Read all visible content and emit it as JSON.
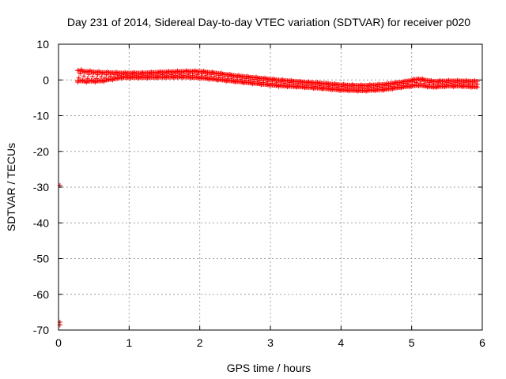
{
  "chart_data": {
    "type": "scatter",
    "title": "Day 231 of 2014, Sidereal Day-to-day VTEC variation (SDTVAR) for receiver p020",
    "xlabel": "GPS time / hours",
    "ylabel": "SDTVAR / TECUs",
    "xlim": [
      0,
      6
    ],
    "ylim": [
      -70,
      10
    ],
    "xticks": [
      "0",
      "1",
      "2",
      "3",
      "4",
      "5",
      "6"
    ],
    "yticks": [
      "-70",
      "-60",
      "-50",
      "-40",
      "-30",
      "-20",
      "-10",
      "0",
      "10"
    ],
    "grid": true,
    "legend": "none",
    "colors": {
      "series": "#ff0000",
      "outlier": "#cc0000",
      "grid": "#a0a0a0"
    },
    "series": [
      {
        "values_center": [
          [
            0.27,
            1.2
          ],
          [
            0.4,
            1.0
          ],
          [
            0.6,
            0.9
          ],
          [
            0.9,
            1.3
          ],
          [
            1.2,
            1.3
          ],
          [
            1.5,
            1.5
          ],
          [
            1.8,
            1.6
          ],
          [
            2.0,
            1.5
          ],
          [
            2.2,
            1.1
          ],
          [
            2.5,
            0.4
          ],
          [
            2.8,
            -0.2
          ],
          [
            3.1,
            -0.8
          ],
          [
            3.4,
            -1.2
          ],
          [
            3.7,
            -1.6
          ],
          [
            4.0,
            -2.1
          ],
          [
            4.3,
            -2.3
          ],
          [
            4.6,
            -2.0
          ],
          [
            4.9,
            -1.2
          ],
          [
            5.1,
            -0.6
          ],
          [
            5.3,
            -1.2
          ],
          [
            5.5,
            -1.0
          ],
          [
            5.7,
            -1.0
          ],
          [
            5.93,
            -1.2
          ]
        ],
        "values_spread": [
          [
            0.27,
            1.8
          ],
          [
            0.4,
            1.7
          ],
          [
            0.6,
            1.5
          ],
          [
            0.9,
            0.8
          ],
          [
            1.2,
            0.8
          ],
          [
            1.5,
            0.9
          ],
          [
            1.8,
            1.0
          ],
          [
            2.0,
            1.1
          ],
          [
            2.2,
            1.1
          ],
          [
            2.5,
            1.0
          ],
          [
            2.8,
            1.0
          ],
          [
            3.1,
            1.0
          ],
          [
            3.4,
            0.9
          ],
          [
            3.7,
            0.9
          ],
          [
            4.0,
            0.9
          ],
          [
            4.3,
            0.9
          ],
          [
            4.6,
            0.9
          ],
          [
            4.9,
            0.9
          ],
          [
            5.1,
            1.1
          ],
          [
            5.3,
            1.0
          ],
          [
            5.5,
            0.9
          ],
          [
            5.7,
            0.9
          ],
          [
            5.93,
            1.0
          ]
        ]
      },
      {
        "values": [
          [
            0.02,
            -29.5
          ],
          [
            0.02,
            -67.8
          ],
          [
            0.02,
            -68.6
          ]
        ]
      }
    ]
  }
}
